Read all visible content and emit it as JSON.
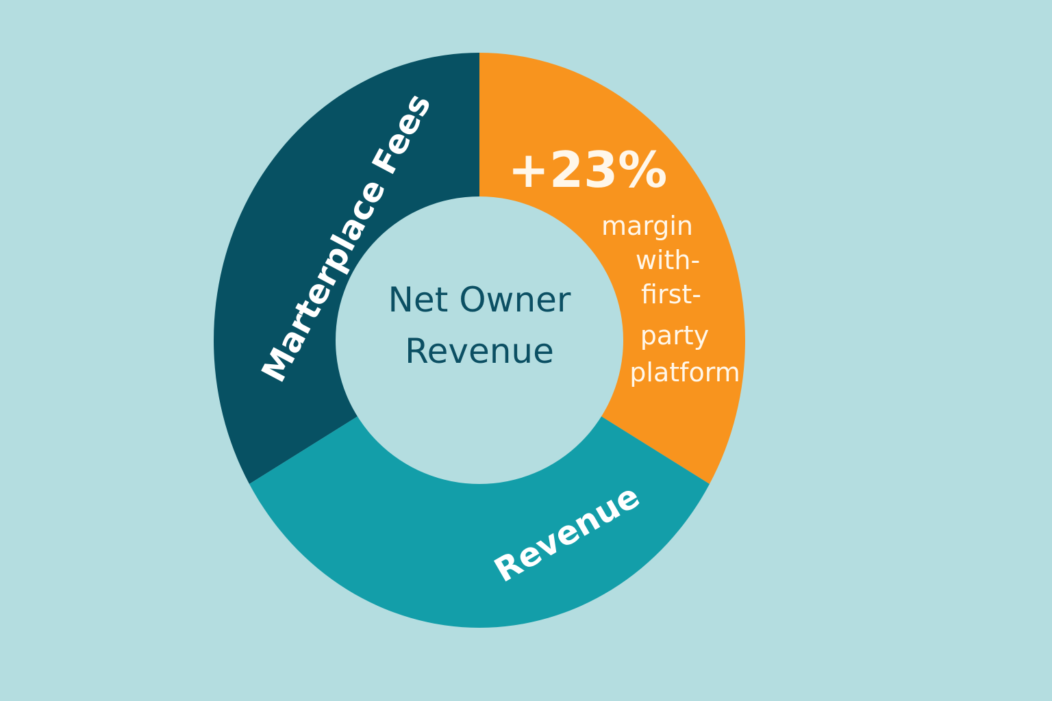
{
  "colors": {
    "background": "#b4dde0",
    "marketplace_fees": "#075163",
    "revenue": "#139ea9",
    "margin": "#f8941e",
    "center_text": "#0b4f63",
    "label_text": "#ffffff"
  },
  "chart_data": {
    "type": "pie",
    "donut": true,
    "title": "",
    "center_label": [
      "Net Owner",
      "Revenue"
    ],
    "slices": [
      {
        "label": "Marterplace Fees",
        "start_deg": 240,
        "end_deg": 360,
        "color": "#075163"
      },
      {
        "label": "",
        "start_deg": 0,
        "end_deg": 120,
        "color": "#f8941e"
      },
      {
        "label": "Revenue",
        "start_deg": 120,
        "end_deg": 240,
        "color": "#139ea9"
      }
    ],
    "annotations": {
      "highlight": "+23%",
      "lines": [
        "margin",
        "with-",
        "first-",
        "party",
        "platform"
      ]
    }
  }
}
